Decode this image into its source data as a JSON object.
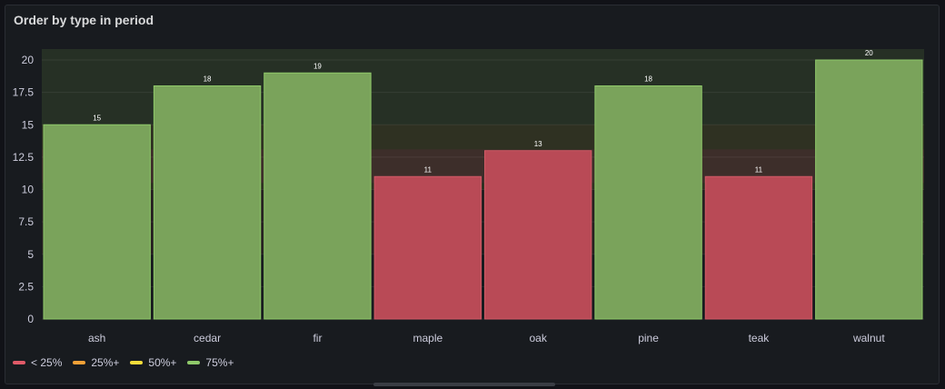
{
  "panel": {
    "title": "Order by type in period"
  },
  "chart_data": {
    "type": "bar",
    "title": "Order by type in period",
    "categories": [
      "ash",
      "cedar",
      "fir",
      "maple",
      "oak",
      "pine",
      "teak",
      "walnut"
    ],
    "values": [
      15,
      18,
      19,
      11,
      13,
      18,
      11,
      20
    ],
    "ylim": [
      0,
      20
    ],
    "yticks": [
      0,
      2.5,
      5,
      7.5,
      10,
      12.5,
      15,
      17.5,
      20
    ],
    "ytick_labels": [
      "0",
      "2.5",
      "5",
      "7.5",
      "10",
      "12.5",
      "15",
      "17.5",
      "20"
    ],
    "thresholds": [
      {
        "label": "< 25%",
        "min_fraction": 0,
        "color": "#e05a68"
      },
      {
        "label": "25%+",
        "min_fraction": 0.25,
        "color": "#f5a137"
      },
      {
        "label": "50%+",
        "min_fraction": 0.5,
        "color": "#f8dd3a"
      },
      {
        "label": "75%+",
        "min_fraction": 0.75,
        "color": "#8fc96a"
      }
    ],
    "bar_colors": {
      "red": "#b94a56",
      "orange": "#c98a3c",
      "green": "#7aa35b"
    },
    "legend_position": "bottom-left",
    "grid": true
  }
}
